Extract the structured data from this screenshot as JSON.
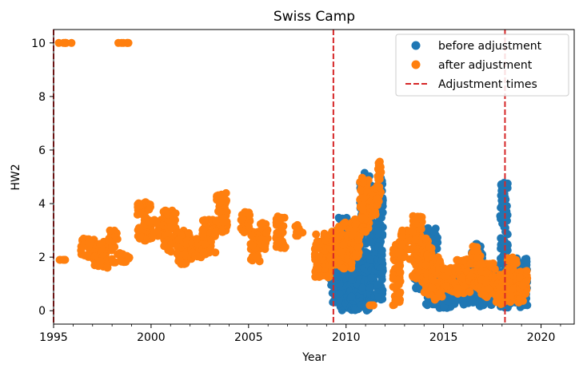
{
  "chart_data": {
    "type": "scatter",
    "title": "Swiss Camp",
    "xlabel": "Year",
    "ylabel": "HW2",
    "xlim": [
      1995.0,
      2021.7
    ],
    "ylim": [
      -0.5,
      10.5
    ],
    "xticks": [
      1995,
      2000,
      2005,
      2010,
      2015,
      2020
    ],
    "yticks": [
      0,
      2,
      4,
      6,
      8,
      10
    ],
    "grid": false,
    "legend_position": "top-right",
    "colors": {
      "before": "#1f77b4",
      "after": "#ff7f0e",
      "adjustment": "#d62728"
    },
    "adjustment_times": [
      1995.0,
      2009.35,
      2018.15
    ],
    "series": [
      {
        "name": "before adjustment",
        "segments": [
          {
            "x0": 2009.2,
            "x1": 2009.6,
            "ymin": 0.3,
            "ymax": 3.0
          },
          {
            "x0": 2009.6,
            "x1": 2010.2,
            "ymin": 0.0,
            "ymax": 3.5
          },
          {
            "x0": 2010.2,
            "x1": 2010.7,
            "ymin": 0.0,
            "ymax": 3.3
          },
          {
            "x0": 2010.7,
            "x1": 2011.2,
            "ymin": 0.0,
            "ymax": 5.2
          },
          {
            "x0": 2011.2,
            "x1": 2011.6,
            "ymin": 0.2,
            "ymax": 4.8
          },
          {
            "x0": 2011.6,
            "x1": 2011.9,
            "ymin": 0.4,
            "ymax": 5.1
          },
          {
            "x0": 2013.5,
            "x1": 2014.1,
            "ymin": 0.8,
            "ymax": 3.0
          },
          {
            "x0": 2014.1,
            "x1": 2014.7,
            "ymin": 0.2,
            "ymax": 3.1
          },
          {
            "x0": 2014.7,
            "x1": 2015.6,
            "ymin": 0.1,
            "ymax": 1.6
          },
          {
            "x0": 2015.6,
            "x1": 2016.4,
            "ymin": 0.2,
            "ymax": 1.8
          },
          {
            "x0": 2016.4,
            "x1": 2017.0,
            "ymin": 0.1,
            "ymax": 2.5
          },
          {
            "x0": 2017.0,
            "x1": 2017.8,
            "ymin": 0.2,
            "ymax": 1.7
          },
          {
            "x0": 2017.9,
            "x1": 2018.3,
            "ymin": 0.1,
            "ymax": 4.8
          },
          {
            "x0": 2018.3,
            "x1": 2019.3,
            "ymin": 0.1,
            "ymax": 2.0
          }
        ]
      },
      {
        "name": "after adjustment",
        "segments": [
          {
            "x0": 1995.0,
            "x1": 1996.6,
            "ymin": 10.0,
            "ymax": 10.0
          },
          {
            "x0": 1998.3,
            "x1": 1999.3,
            "ymin": 10.0,
            "ymax": 10.0
          },
          {
            "x0": 1995.3,
            "x1": 1995.6,
            "ymin": 1.9,
            "ymax": 1.9
          },
          {
            "x0": 1996.4,
            "x1": 1997.1,
            "ymin": 1.9,
            "ymax": 2.7
          },
          {
            "x0": 1997.1,
            "x1": 1997.8,
            "ymin": 1.6,
            "ymax": 2.6
          },
          {
            "x0": 1997.8,
            "x1": 1998.3,
            "ymin": 1.8,
            "ymax": 3.0
          },
          {
            "x0": 1998.3,
            "x1": 1998.9,
            "ymin": 1.8,
            "ymax": 2.2
          },
          {
            "x0": 1999.3,
            "x1": 2000.0,
            "ymin": 2.6,
            "ymax": 4.1
          },
          {
            "x0": 2000.0,
            "x1": 2000.6,
            "ymin": 2.7,
            "ymax": 3.4
          },
          {
            "x0": 2000.6,
            "x1": 2001.3,
            "ymin": 2.2,
            "ymax": 3.8
          },
          {
            "x0": 2001.3,
            "x1": 2002.0,
            "ymin": 1.7,
            "ymax": 3.0
          },
          {
            "x0": 2002.0,
            "x1": 2002.6,
            "ymin": 1.9,
            "ymax": 2.7
          },
          {
            "x0": 2002.6,
            "x1": 2003.3,
            "ymin": 2.1,
            "ymax": 3.4
          },
          {
            "x0": 2003.3,
            "x1": 2003.9,
            "ymin": 2.9,
            "ymax": 4.4
          },
          {
            "x0": 2004.6,
            "x1": 2005.1,
            "ymin": 2.8,
            "ymax": 3.7
          },
          {
            "x0": 2005.1,
            "x1": 2005.6,
            "ymin": 1.8,
            "ymax": 3.0
          },
          {
            "x0": 2005.6,
            "x1": 2006.0,
            "ymin": 2.3,
            "ymax": 3.4
          },
          {
            "x0": 2006.4,
            "x1": 2006.9,
            "ymin": 2.2,
            "ymax": 3.6
          },
          {
            "x0": 2007.4,
            "x1": 2007.8,
            "ymin": 2.8,
            "ymax": 3.2
          },
          {
            "x0": 2008.4,
            "x1": 2009.2,
            "ymin": 1.2,
            "ymax": 2.9
          },
          {
            "x0": 2009.2,
            "x1": 2009.6,
            "ymin": 1.7,
            "ymax": 3.0
          },
          {
            "x0": 2009.6,
            "x1": 2010.3,
            "ymin": 1.5,
            "ymax": 3.3
          },
          {
            "x0": 2010.3,
            "x1": 2010.7,
            "ymin": 2.0,
            "ymax": 3.5
          },
          {
            "x0": 2010.7,
            "x1": 2011.2,
            "ymin": 2.9,
            "ymax": 5.0
          },
          {
            "x0": 2011.2,
            "x1": 2011.6,
            "ymin": 3.5,
            "ymax": 4.6
          },
          {
            "x0": 2011.6,
            "x1": 2011.8,
            "ymin": 3.8,
            "ymax": 5.7
          },
          {
            "x0": 2011.2,
            "x1": 2011.4,
            "ymin": 0.2,
            "ymax": 0.2
          },
          {
            "x0": 2012.4,
            "x1": 2012.8,
            "ymin": 0.2,
            "ymax": 2.6
          },
          {
            "x0": 2012.8,
            "x1": 2013.4,
            "ymin": 1.9,
            "ymax": 3.0
          },
          {
            "x0": 2013.4,
            "x1": 2013.9,
            "ymin": 1.2,
            "ymax": 3.6
          },
          {
            "x0": 2013.9,
            "x1": 2014.4,
            "ymin": 0.6,
            "ymax": 2.7
          },
          {
            "x0": 2014.4,
            "x1": 2015.0,
            "ymin": 0.4,
            "ymax": 2.0
          },
          {
            "x0": 2015.0,
            "x1": 2015.6,
            "ymin": 0.7,
            "ymax": 1.6
          },
          {
            "x0": 2015.6,
            "x1": 2016.3,
            "ymin": 0.6,
            "ymax": 2.0
          },
          {
            "x0": 2016.3,
            "x1": 2016.9,
            "ymin": 0.7,
            "ymax": 2.4
          },
          {
            "x0": 2016.9,
            "x1": 2017.7,
            "ymin": 0.5,
            "ymax": 1.8
          },
          {
            "x0": 2017.7,
            "x1": 2018.2,
            "ymin": 0.2,
            "ymax": 1.4
          },
          {
            "x0": 2018.2,
            "x1": 2018.8,
            "ymin": 0.3,
            "ymax": 2.0
          },
          {
            "x0": 2018.8,
            "x1": 2019.3,
            "ymin": 0.3,
            "ymax": 1.5
          }
        ]
      }
    ],
    "legend": {
      "entries": [
        {
          "label": "before adjustment",
          "marker": "circle",
          "color": "#1f77b4"
        },
        {
          "label": "after adjustment",
          "marker": "circle",
          "color": "#ff7f0e"
        },
        {
          "label": "Adjustment times",
          "marker": "dashed-line",
          "color": "#d62728"
        }
      ]
    }
  }
}
